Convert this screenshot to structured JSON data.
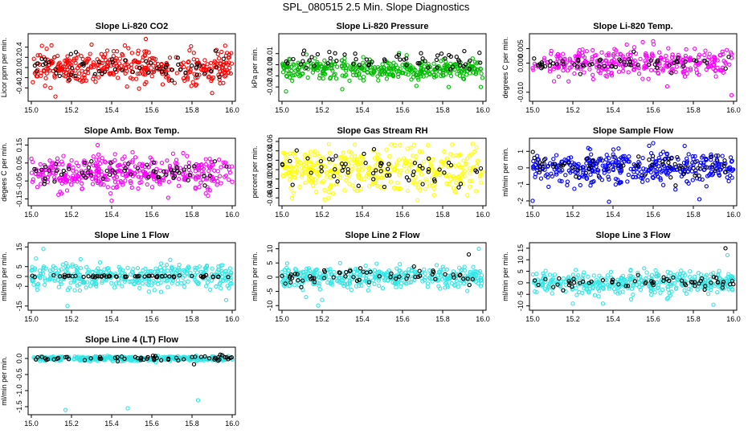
{
  "figure": {
    "title": "SPL_080515  2.5 Min. Slope Diagnostics"
  },
  "chart_data": [
    {
      "type": "scatter",
      "title": "Slope Li-820 CO2",
      "xlabel": "",
      "ylabel": "Licor ppm per min.",
      "xlim": [
        15.0,
        16.0
      ],
      "ylim": [
        -0.6,
        0.6
      ],
      "xticks": [
        "15.0",
        "15.2",
        "15.4",
        "15.6",
        "15.8",
        "16.0"
      ],
      "yticks": [
        "-0.4",
        "-0.2",
        "0.0",
        "0.2",
        "0.4"
      ],
      "series": [
        {
          "color": "#ff0000",
          "center": 0.0,
          "spread": 0.16,
          "n": 380,
          "outliers": [
            [
              15.12,
              -0.57
            ],
            [
              15.57,
              0.56
            ],
            [
              15.3,
              0.45
            ],
            [
              15.9,
              -0.5
            ]
          ]
        },
        {
          "color": "#000000",
          "center": 0.0,
          "spread": 0.14,
          "n": 60,
          "outliers": []
        }
      ]
    },
    {
      "type": "scatter",
      "title": "Slope Li-820 Pressure",
      "xlabel": "",
      "ylabel": "kPa per min.",
      "xlim": [
        15.0,
        16.0
      ],
      "ylim": [
        -0.03,
        0.025
      ],
      "xticks": [
        "15.0",
        "15.2",
        "15.4",
        "15.6",
        "15.8",
        "16.0"
      ],
      "yticks": [
        "-0.02",
        "-0.01",
        "0.00",
        "0.01"
      ],
      "series": [
        {
          "color": "#00bb00",
          "center": -0.004,
          "spread": 0.0045,
          "n": 380,
          "outliers": [
            [
              15.02,
              -0.024
            ],
            [
              15.3,
              -0.022
            ],
            [
              15.83,
              -0.02
            ],
            [
              15.99,
              -0.02
            ]
          ]
        },
        {
          "color": "#000000",
          "center": 0.004,
          "spread": 0.004,
          "n": 60,
          "outliers": []
        }
      ]
    },
    {
      "type": "scatter",
      "title": "Slope Li-820 Temp.",
      "xlabel": "",
      "ylabel": "degrees C per min.",
      "xlim": [
        15.0,
        16.0
      ],
      "ylim": [
        -0.012,
        0.009
      ],
      "xticks": [
        "15.0",
        "15.2",
        "15.4",
        "15.6",
        "15.8",
        "16.0"
      ],
      "yticks": [
        "-0.010",
        "0.000",
        "0.005"
      ],
      "series": [
        {
          "color": "#ff00ff",
          "center": 0.0,
          "spread": 0.0025,
          "n": 320,
          "outliers": [
            [
              15.6,
              0.0075
            ],
            [
              15.99,
              -0.011
            ],
            [
              15.67,
              -0.008
            ]
          ]
        },
        {
          "color": "#000000",
          "center": 0.0,
          "spread": 0.0015,
          "n": 60,
          "outliers": []
        }
      ]
    },
    {
      "type": "scatter",
      "title": "Slope Amb. Box Temp.",
      "xlabel": "",
      "ylabel": "degees C per min.",
      "xlim": [
        15.0,
        16.0
      ],
      "ylim": [
        -0.17,
        0.17
      ],
      "xticks": [
        "15.0",
        "15.2",
        "15.4",
        "15.6",
        "15.8",
        "16.0"
      ],
      "yticks": [
        "-0.15",
        "-0.05",
        "0.05",
        "0.15"
      ],
      "series": [
        {
          "color": "#ff00ff",
          "center": 0.0,
          "spread": 0.045,
          "n": 380,
          "outliers": [
            [
              15.33,
              0.15
            ],
            [
              15.4,
              -0.16
            ],
            [
              15.15,
              -0.12
            ]
          ]
        },
        {
          "color": "#000000",
          "center": 0.0,
          "spread": 0.03,
          "n": 60,
          "outliers": []
        }
      ]
    },
    {
      "type": "scatter",
      "title": "Slope Gas Stream RH",
      "xlabel": "",
      "ylabel": "percent per min.",
      "xlim": [
        15.0,
        16.0
      ],
      "ylim": [
        -0.07,
        0.06
      ],
      "xticks": [
        "15.0",
        "15.2",
        "15.4",
        "15.6",
        "15.8",
        "16.0"
      ],
      "yticks": [
        "-0.06",
        "-0.04",
        "-0.02",
        "0.00",
        "0.02",
        "0.04",
        "0.06"
      ],
      "series": [
        {
          "color": "#ffff00",
          "center": 0.0,
          "spread": 0.025,
          "n": 380,
          "outliers": [
            [
              15.05,
              -0.06
            ],
            [
              15.95,
              0.055
            ]
          ]
        },
        {
          "color": "#000000",
          "center": 0.0,
          "spread": 0.02,
          "n": 60,
          "outliers": []
        }
      ]
    },
    {
      "type": "scatter",
      "title": "Slope Sample Flow",
      "xlabel": "",
      "ylabel": "ml/min per min.",
      "xlim": [
        15.0,
        16.0
      ],
      "ylim": [
        -2.1,
        1.6
      ],
      "xticks": [
        "15.0",
        "15.2",
        "15.4",
        "15.6",
        "15.8",
        "16.0"
      ],
      "yticks": [
        "-2",
        "-1",
        "0",
        "1"
      ],
      "series": [
        {
          "color": "#0000ff",
          "center": 0.0,
          "spread": 0.45,
          "n": 380,
          "outliers": [
            [
              15.0,
              -2.0
            ],
            [
              15.38,
              -2.05
            ],
            [
              15.83,
              -1.9
            ],
            [
              15.6,
              1.5
            ]
          ]
        },
        {
          "color": "#000000",
          "center": 0.1,
          "spread": 0.4,
          "n": 60,
          "outliers": []
        }
      ]
    },
    {
      "type": "scatter",
      "title": "Slope Line 1 Flow",
      "xlabel": "",
      "ylabel": "ml/min per min.",
      "xlim": [
        15.0,
        16.0
      ],
      "ylim": [
        -15.5,
        15.5
      ],
      "xticks": [
        "15.0",
        "15.2",
        "15.4",
        "15.6",
        "15.8",
        "16.0"
      ],
      "yticks": [
        "-15",
        "-5",
        "0",
        "5",
        "15"
      ],
      "series": [
        {
          "color": "#33e6e6",
          "center": 0.0,
          "spread": 3.2,
          "n": 380,
          "outliers": [
            [
              15.18,
              -15.0
            ],
            [
              15.06,
              14.0
            ],
            [
              15.97,
              -12.0
            ]
          ]
        },
        {
          "color": "#000000",
          "center": 0.0,
          "spread": 0.3,
          "n": 60,
          "outliers": []
        }
      ]
    },
    {
      "type": "scatter",
      "title": "Slope Line 2 Flow",
      "xlabel": "",
      "ylabel": "ml/min per min.",
      "xlim": [
        15.0,
        16.0
      ],
      "ylim": [
        -10.5,
        11.0
      ],
      "xticks": [
        "15.0",
        "15.2",
        "15.4",
        "15.6",
        "15.8",
        "16.0"
      ],
      "yticks": [
        "-10",
        "-5",
        "0",
        "5",
        "10"
      ],
      "series": [
        {
          "color": "#33e6e6",
          "center": 0.0,
          "spread": 1.8,
          "n": 380,
          "outliers": [
            [
              15.18,
              -10.0
            ],
            [
              15.12,
              -7.0
            ],
            [
              15.98,
              10.0
            ],
            [
              15.2,
              -8.0
            ]
          ]
        },
        {
          "color": "#000000",
          "center": 0.3,
          "spread": 1.3,
          "n": 60,
          "outliers": [
            [
              15.93,
              8.0
            ]
          ]
        }
      ]
    },
    {
      "type": "scatter",
      "title": "Slope Line 3 Flow",
      "xlabel": "",
      "ylabel": "ml/min per min.",
      "xlim": [
        15.0,
        16.0
      ],
      "ylim": [
        -10.5,
        16.0
      ],
      "xticks": [
        "15.0",
        "15.2",
        "15.4",
        "15.6",
        "15.8",
        "16.0"
      ],
      "yticks": [
        "-10",
        "-5",
        "0",
        "5",
        "10",
        "15"
      ],
      "series": [
        {
          "color": "#33e6e6",
          "center": 0.0,
          "spread": 2.4,
          "n": 380,
          "outliers": [
            [
              15.2,
              -9.0
            ],
            [
              15.35,
              -9.0
            ],
            [
              15.9,
              -9.5
            ],
            [
              15.97,
              12.0
            ]
          ]
        },
        {
          "color": "#000000",
          "center": 0.3,
          "spread": 1.5,
          "n": 60,
          "outliers": [
            [
              15.96,
              15.0
            ]
          ]
        }
      ]
    },
    {
      "type": "scatter",
      "title": "Slope Line 4 (LT) Flow",
      "xlabel": "",
      "ylabel": "ml/min per min.",
      "xlim": [
        15.0,
        16.0
      ],
      "ylim": [
        -1.65,
        0.25
      ],
      "xticks": [
        "15.0",
        "15.2",
        "15.4",
        "15.6",
        "15.8",
        "16.0"
      ],
      "yticks": [
        "-1.5",
        "-1.0",
        "-0.5",
        "0.0"
      ],
      "series": [
        {
          "color": "#33e6e6",
          "center": 0.0,
          "spread": 0.035,
          "n": 380,
          "outliers": [
            [
              15.17,
              -1.6
            ],
            [
              15.48,
              -1.55
            ],
            [
              15.83,
              -1.3
            ],
            [
              15.62,
              -0.05
            ]
          ]
        },
        {
          "color": "#000000",
          "center": 0.0,
          "spread": 0.04,
          "n": 60,
          "outliers": [
            [
              15.95,
              0.1
            ],
            [
              15.81,
              -0.18
            ]
          ]
        }
      ]
    }
  ]
}
